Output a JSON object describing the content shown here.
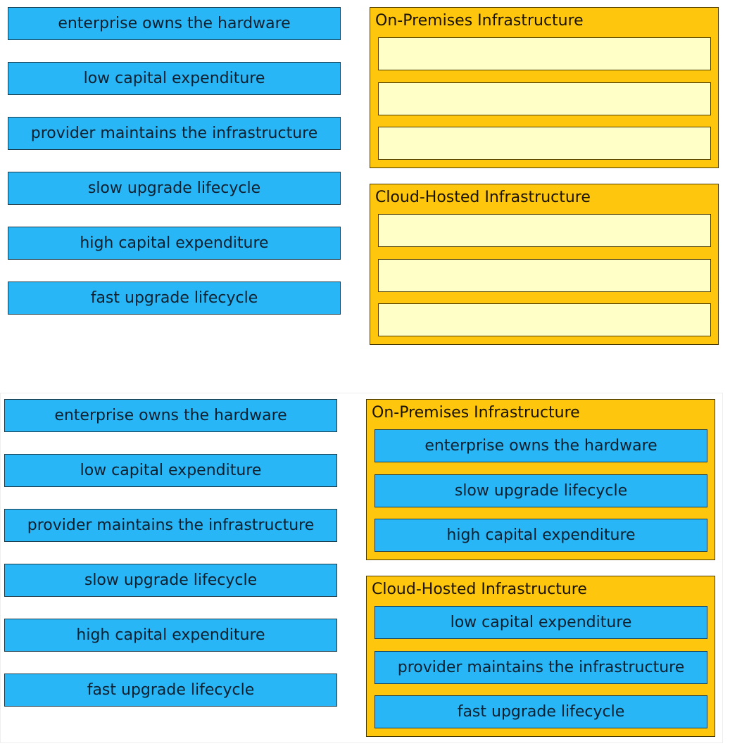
{
  "question": {
    "items": [
      "enterprise owns the hardware",
      "low capital expenditure",
      "provider maintains the infrastructure",
      "slow upgrade lifecycle",
      "high capital expenditure",
      "fast upgrade lifecycle"
    ],
    "zones": [
      {
        "title": "On-Premises Infrastructure"
      },
      {
        "title": "Cloud-Hosted Infrastructure"
      }
    ]
  },
  "answer": {
    "items": [
      "enterprise owns the hardware",
      "low capital expenditure",
      "provider maintains the infrastructure",
      "slow upgrade lifecycle",
      "high capital expenditure",
      "fast upgrade lifecycle"
    ],
    "zones": [
      {
        "title": "On-Premises Infrastructure",
        "slots": [
          "enterprise owns the hardware",
          "slow upgrade lifecycle",
          "high capital expenditure"
        ]
      },
      {
        "title": "Cloud-Hosted Infrastructure",
        "slots": [
          "low capital expenditure",
          "provider maintains the infrastructure",
          "fast upgrade lifecycle"
        ]
      }
    ]
  },
  "colors": {
    "item": "#29b6f6",
    "zone": "#fec60c",
    "slot": "#ffffc8"
  }
}
